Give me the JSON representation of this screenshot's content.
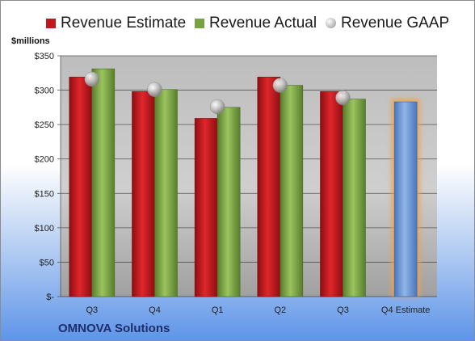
{
  "chart_data": {
    "type": "bar",
    "unit_label": "$millions",
    "categories": [
      "Q3",
      "Q4",
      "Q1",
      "Q2",
      "Q3",
      "Q4 Estimate"
    ],
    "series": [
      {
        "name": "Revenue Estimate",
        "color": "#c0181e",
        "values": [
          319,
          298,
          259,
          319,
          298,
          283
        ]
      },
      {
        "name": "Revenue Actual",
        "color": "#76a33f",
        "values": [
          331,
          301,
          275,
          307,
          287,
          null
        ]
      },
      {
        "name": "Revenue GAAP",
        "color": "#b9b9b9",
        "values": [
          316,
          301,
          276,
          307,
          289,
          null
        ]
      }
    ],
    "y_ticks": [
      {
        "value": 0,
        "label": "$-"
      },
      {
        "value": 50,
        "label": "$50"
      },
      {
        "value": 100,
        "label": "$100"
      },
      {
        "value": 150,
        "label": "$150"
      },
      {
        "value": 200,
        "label": "$200"
      },
      {
        "value": 250,
        "label": "$250"
      },
      {
        "value": 300,
        "label": "$300"
      },
      {
        "value": 350,
        "label": "$350"
      }
    ],
    "ylim": [
      0,
      350
    ],
    "estimate_color": "#6b99d6",
    "grid": true,
    "legend_position": "top",
    "company": "OMNOVA Solutions"
  }
}
